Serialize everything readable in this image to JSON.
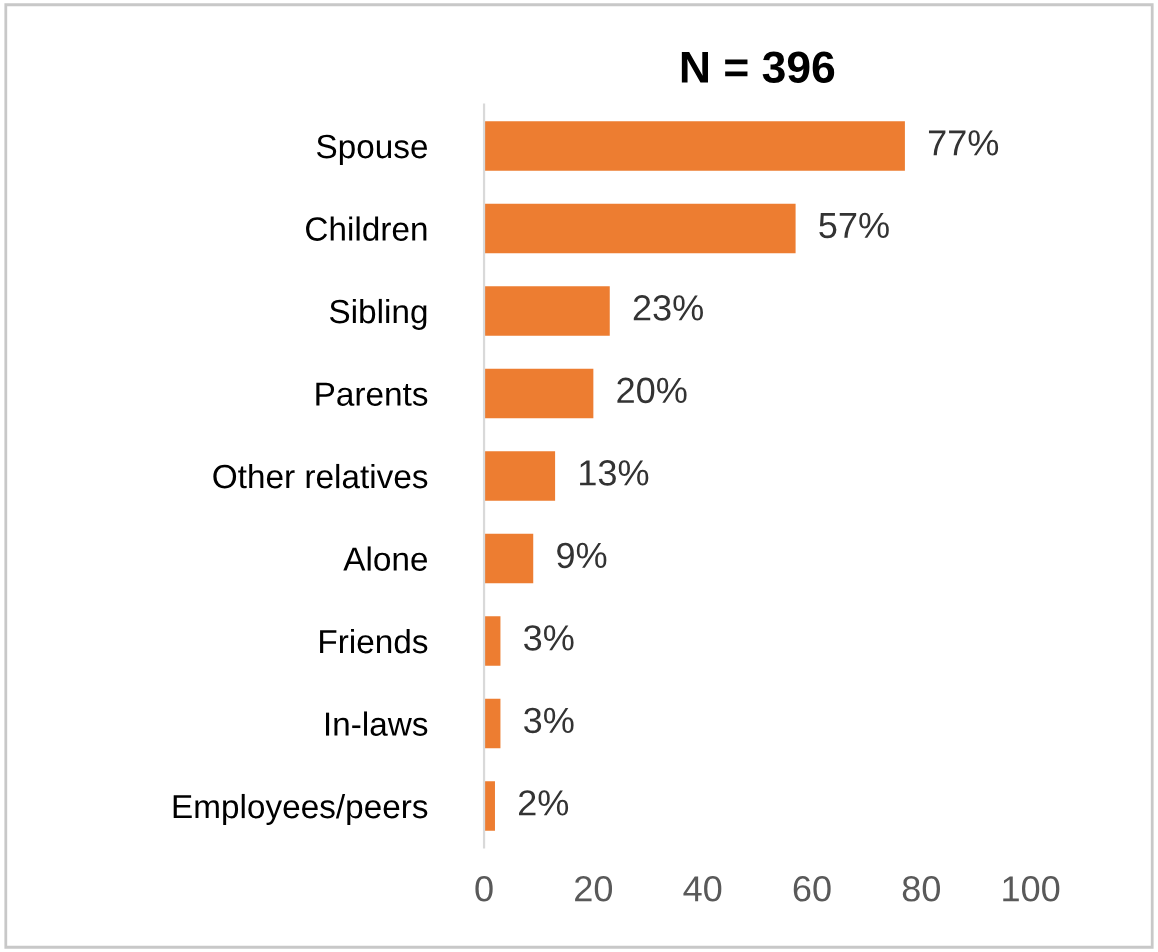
{
  "chart_data": {
    "type": "bar",
    "orientation": "horizontal",
    "title": "N = 396",
    "categories": [
      "Spouse",
      "Children",
      "Sibling",
      "Parents",
      "Other relatives",
      "Alone",
      "Friends",
      "In-laws",
      "Employees/peers"
    ],
    "values": [
      77,
      57,
      23,
      20,
      13,
      9,
      3,
      3,
      2
    ],
    "value_labels": [
      "77%",
      "57%",
      "23%",
      "20%",
      "13%",
      "9%",
      "3%",
      "3%",
      "2%"
    ],
    "color": "#ed7d31",
    "xlim": [
      0,
      100
    ],
    "xticks": [
      0,
      20,
      40,
      60,
      80,
      100
    ],
    "grid": false
  }
}
